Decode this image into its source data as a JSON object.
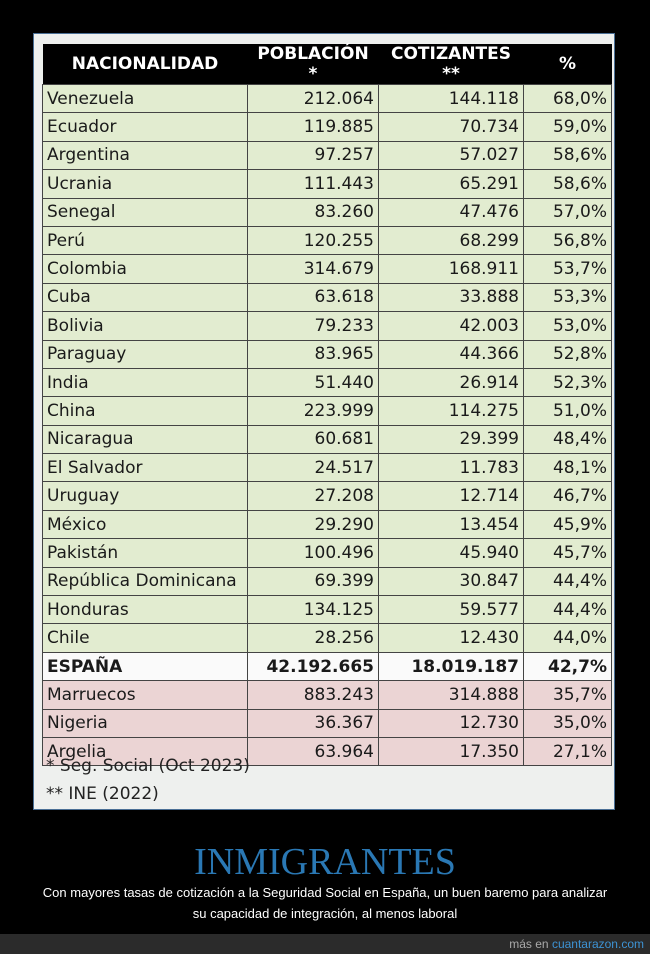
{
  "table": {
    "headers": [
      "NACIONALIDAD",
      "POBLACIÓN *",
      "COTIZANTES **",
      "%"
    ],
    "rows": [
      {
        "name": "Venezuela",
        "poblacion": "212.064",
        "cotizantes": "144.118",
        "pct": "68,0%",
        "group": "green"
      },
      {
        "name": "Ecuador",
        "poblacion": "119.885",
        "cotizantes": "70.734",
        "pct": "59,0%",
        "group": "green"
      },
      {
        "name": "Argentina",
        "poblacion": "97.257",
        "cotizantes": "57.027",
        "pct": "58,6%",
        "group": "green"
      },
      {
        "name": "Ucrania",
        "poblacion": "111.443",
        "cotizantes": "65.291",
        "pct": "58,6%",
        "group": "green"
      },
      {
        "name": "Senegal",
        "poblacion": "83.260",
        "cotizantes": "47.476",
        "pct": "57,0%",
        "group": "green"
      },
      {
        "name": "Perú",
        "poblacion": "120.255",
        "cotizantes": "68.299",
        "pct": "56,8%",
        "group": "green"
      },
      {
        "name": "Colombia",
        "poblacion": "314.679",
        "cotizantes": "168.911",
        "pct": "53,7%",
        "group": "green"
      },
      {
        "name": "Cuba",
        "poblacion": "63.618",
        "cotizantes": "33.888",
        "pct": "53,3%",
        "group": "green"
      },
      {
        "name": "Bolivia",
        "poblacion": "79.233",
        "cotizantes": "42.003",
        "pct": "53,0%",
        "group": "green"
      },
      {
        "name": "Paraguay",
        "poblacion": "83.965",
        "cotizantes": "44.366",
        "pct": "52,8%",
        "group": "green"
      },
      {
        "name": "India",
        "poblacion": "51.440",
        "cotizantes": "26.914",
        "pct": "52,3%",
        "group": "green"
      },
      {
        "name": "China",
        "poblacion": "223.999",
        "cotizantes": "114.275",
        "pct": "51,0%",
        "group": "green"
      },
      {
        "name": "Nicaragua",
        "poblacion": "60.681",
        "cotizantes": "29.399",
        "pct": "48,4%",
        "group": "green"
      },
      {
        "name": "El Salvador",
        "poblacion": "24.517",
        "cotizantes": "11.783",
        "pct": "48,1%",
        "group": "green"
      },
      {
        "name": "Uruguay",
        "poblacion": "27.208",
        "cotizantes": "12.714",
        "pct": "46,7%",
        "group": "green"
      },
      {
        "name": "México",
        "poblacion": "29.290",
        "cotizantes": "13.454",
        "pct": "45,9%",
        "group": "green"
      },
      {
        "name": "Pakistán",
        "poblacion": "100.496",
        "cotizantes": "45.940",
        "pct": "45,7%",
        "group": "green"
      },
      {
        "name": "República Dominicana",
        "poblacion": "69.399",
        "cotizantes": "30.847",
        "pct": "44,4%",
        "group": "green"
      },
      {
        "name": "Honduras",
        "poblacion": "134.125",
        "cotizantes": "59.577",
        "pct": "44,4%",
        "group": "green"
      },
      {
        "name": "Chile",
        "poblacion": "28.256",
        "cotizantes": "12.430",
        "pct": "44,0%",
        "group": "green"
      },
      {
        "name": "ESPAÑA",
        "poblacion": "42.192.665",
        "cotizantes": "18.019.187",
        "pct": "42,7%",
        "group": "ref"
      },
      {
        "name": "Marruecos",
        "poblacion": "883.243",
        "cotizantes": "314.888",
        "pct": "35,7%",
        "group": "red"
      },
      {
        "name": "Nigeria",
        "poblacion": "36.367",
        "cotizantes": "12.730",
        "pct": "35,0%",
        "group": "red"
      },
      {
        "name": "Argelia",
        "poblacion": "63.964",
        "cotizantes": "17.350",
        "pct": "27,1%",
        "group": "red"
      }
    ]
  },
  "footnotes": [
    "* Seg. Social (Oct 2023)",
    "** INE (2022)"
  ],
  "title": "INMIGRANTES",
  "caption": [
    "Con mayores tasas de cotización a la Seguridad Social en España, un buen baremo para analizar",
    "su capacidad de integración, al menos laboral"
  ],
  "footer": {
    "prefix": "más en",
    "link": "cuantarazon.com"
  },
  "colors": {
    "green_rows": "#e2ecd0",
    "red_rows": "#ebd4d4",
    "title": "#2a78b4",
    "link": "#3d93d4"
  }
}
